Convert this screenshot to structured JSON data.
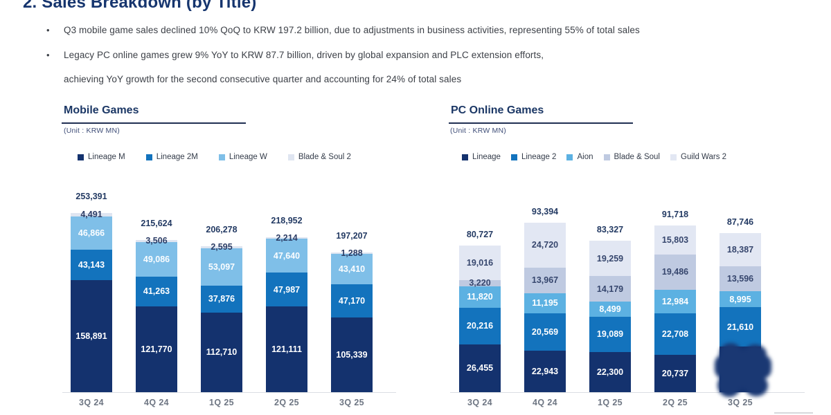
{
  "slide": {
    "title": "2. Sales Breakdown (by Title)",
    "bullets": [
      {
        "marker": "•",
        "text": "Q3 mobile game sales declined 10% QoQ to KRW 197.2 billion, due to adjustments in business activities, representing 55% of total sales"
      },
      {
        "marker": "•",
        "text": "Legacy PC online games grew 9% YoY to KRW 87.7 billion, driven by global expansion and PLC extension efforts,"
      },
      {
        "marker": "",
        "text": "achieving YoY growth for the second consecutive quarter and accounting for 24% of total sales"
      }
    ]
  },
  "colors": {
    "title_navy": "#16356e",
    "bar_navy": "#14326e",
    "bar_blue": "#1373bd",
    "bar_light_blue_mobile": "#7fbfe8",
    "bar_light_blue_pc": "#5cb1e2",
    "bar_pale_gray_blue": "#bfcae1",
    "bar_pale_lavender": "#e2e7f3",
    "dark_value_label": "#36466d",
    "category_gray": "#6e7683"
  },
  "chart_data": [
    {
      "type": "bar",
      "stacked": true,
      "title": "Mobile Games",
      "unit": "(Unit : KRW MN)",
      "legend_position": "top",
      "grid": false,
      "categories": [
        "3Q 24",
        "4Q 24",
        "1Q 25",
        "2Q 25",
        "3Q 25"
      ],
      "totals": [
        253391,
        215624,
        206278,
        218952,
        197207
      ],
      "ylim": [
        0,
        260000
      ],
      "series": [
        {
          "name": "Lineage M",
          "color": "#14326e",
          "label_color": "#ffffff",
          "values": [
            158891,
            121770,
            112710,
            121111,
            105339
          ]
        },
        {
          "name": "Lineage 2M",
          "color": "#1373bd",
          "label_color": "#ffffff",
          "values": [
            43143,
            41263,
            37876,
            47987,
            47170
          ]
        },
        {
          "name": "Lineage W",
          "color": "#7fbfe8",
          "label_color": "#fbfdff",
          "values": [
            46866,
            49086,
            53097,
            47640,
            43410
          ]
        },
        {
          "name": "Blade & Soul 2",
          "color": "#dfe5f1",
          "label_color": "#2c3d66",
          "values": [
            4491,
            3506,
            2595,
            2214,
            1288
          ]
        }
      ]
    },
    {
      "type": "bar",
      "stacked": true,
      "title": "PC Online Games",
      "unit": "(Unit : KRW MN)",
      "legend_position": "top",
      "grid": false,
      "categories": [
        "3Q 24",
        "4Q 24",
        "1Q 25",
        "2Q 25",
        "3Q 25"
      ],
      "totals": [
        80727,
        93394,
        83327,
        91718,
        87746
      ],
      "ylim": [
        0,
        100000
      ],
      "series": [
        {
          "name": "Lineage",
          "color": "#14326e",
          "label_color": "#ffffff",
          "values": [
            26455,
            22943,
            22300,
            20737,
            null
          ]
        },
        {
          "name": "Lineage 2",
          "color": "#1373bd",
          "label_color": "#ffffff",
          "values": [
            20216,
            20569,
            19089,
            22708,
            21610
          ]
        },
        {
          "name": "Aion",
          "color": "#5cb1e2",
          "label_color": "#ffffff",
          "values": [
            11820,
            11195,
            8499,
            12984,
            8995
          ]
        },
        {
          "name": "Blade & Soul",
          "color": "#bfcae1",
          "label_color": "#36466d",
          "values": [
            3220,
            13967,
            14179,
            19486,
            13596
          ]
        },
        {
          "name": "Guild Wars 2",
          "color": "#e2e7f3",
          "label_color": "#36466d",
          "values": [
            19016,
            24720,
            19259,
            15803,
            18387
          ]
        }
      ],
      "obscured": {
        "series": "Lineage",
        "category": "3Q 25",
        "appearance": "dark ink smudge covering bottom segment value"
      }
    }
  ]
}
